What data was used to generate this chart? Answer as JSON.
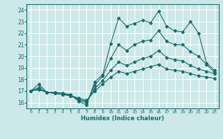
{
  "xlabel": "Humidex (Indice chaleur)",
  "ylabel": "",
  "bg_color": "#cce8e8",
  "grid_color": "#ffffff",
  "line_color": "#1a6b6b",
  "xlim": [
    -0.5,
    23.5
  ],
  "ylim": [
    15.5,
    24.5
  ],
  "xticks": [
    0,
    1,
    2,
    3,
    4,
    5,
    6,
    7,
    8,
    9,
    10,
    11,
    12,
    13,
    14,
    15,
    16,
    17,
    18,
    19,
    20,
    21,
    22,
    23
  ],
  "yticks": [
    16,
    17,
    18,
    19,
    20,
    21,
    22,
    23,
    24
  ],
  "line1_x": [
    0,
    1,
    2,
    3,
    4,
    5,
    6,
    7,
    8,
    9,
    10,
    11,
    12,
    13,
    14,
    15,
    16,
    17,
    18,
    19,
    20,
    21,
    22,
    23
  ],
  "line1_y": [
    17.0,
    17.6,
    16.9,
    16.9,
    16.8,
    16.7,
    16.1,
    15.8,
    17.8,
    18.4,
    21.1,
    23.3,
    22.6,
    22.85,
    23.1,
    22.9,
    23.9,
    22.6,
    22.2,
    22.1,
    23.0,
    22.0,
    19.4,
    18.8
  ],
  "line2_x": [
    0,
    1,
    2,
    3,
    4,
    5,
    6,
    7,
    8,
    9,
    10,
    11,
    12,
    13,
    14,
    15,
    16,
    17,
    18,
    19,
    20,
    21,
    22,
    23
  ],
  "line2_y": [
    17.0,
    17.3,
    16.9,
    16.9,
    16.8,
    16.6,
    16.2,
    16.0,
    17.5,
    18.3,
    19.8,
    21.0,
    20.5,
    21.0,
    21.3,
    21.4,
    22.2,
    21.3,
    21.0,
    21.0,
    20.4,
    20.0,
    19.3,
    18.6
  ],
  "line3_x": [
    0,
    1,
    2,
    3,
    4,
    5,
    6,
    7,
    8,
    9,
    10,
    11,
    12,
    13,
    14,
    15,
    16,
    17,
    18,
    19,
    20,
    21,
    22,
    23
  ],
  "line3_y": [
    17.0,
    17.2,
    16.9,
    16.8,
    16.7,
    16.6,
    16.3,
    16.1,
    17.2,
    17.9,
    18.8,
    19.5,
    19.2,
    19.5,
    19.8,
    20.0,
    20.5,
    19.9,
    19.7,
    19.6,
    19.2,
    18.9,
    18.7,
    18.5
  ],
  "line4_x": [
    0,
    1,
    2,
    3,
    4,
    5,
    6,
    7,
    8,
    9,
    10,
    11,
    12,
    13,
    14,
    15,
    16,
    17,
    18,
    19,
    20,
    21,
    22,
    23
  ],
  "line4_y": [
    17.0,
    17.1,
    16.9,
    16.8,
    16.7,
    16.6,
    16.4,
    16.2,
    17.0,
    17.6,
    18.2,
    18.7,
    18.5,
    18.7,
    18.9,
    19.1,
    19.3,
    18.9,
    18.8,
    18.7,
    18.5,
    18.3,
    18.2,
    18.1
  ]
}
